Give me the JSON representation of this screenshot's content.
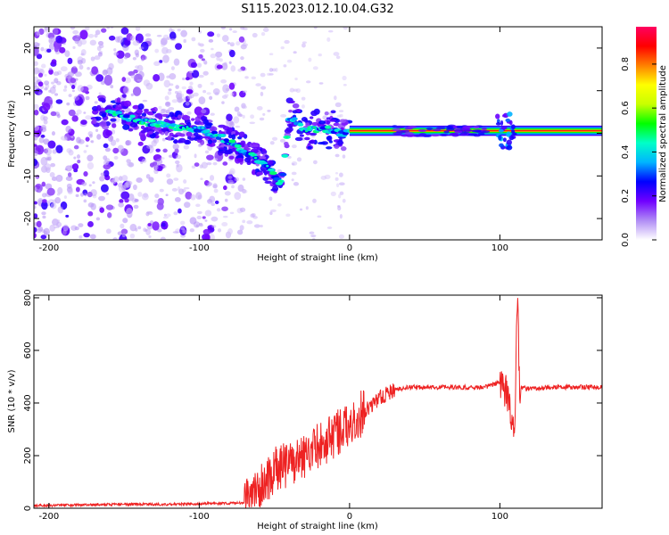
{
  "figure": {
    "title": "S115.2023.012.10.04.G32"
  },
  "chart_data": [
    {
      "type": "heatmap",
      "xlabel": "Height of straight line (km)",
      "ylabel": "Frequency (Hz)",
      "xlim": [
        -210,
        168
      ],
      "ylim": [
        -25,
        25
      ],
      "xticks": [
        -200,
        -100,
        0,
        100
      ],
      "yticks": [
        -20,
        -10,
        0,
        10,
        20
      ],
      "colorbar": {
        "label": "Normalized spectral amplitude",
        "range": [
          0,
          0.97
        ],
        "ticks": [
          0.0,
          0.2,
          0.4,
          0.6,
          0.8
        ],
        "tick_labels": [
          "0.0",
          "0.2",
          "0.4",
          "0.6",
          "0.8"
        ],
        "colormap": [
          "#ffffff",
          "#b08cf5",
          "#7000ff",
          "#0000ff",
          "#00b4ff",
          "#00ffc8",
          "#00ff00",
          "#c8ff00",
          "#ffff00",
          "#ff8000",
          "#ff0000",
          "#ff0060"
        ]
      },
      "ridge_points": [
        {
          "x": -160,
          "y": 5
        },
        {
          "x": -140,
          "y": 3
        },
        {
          "x": -120,
          "y": 1.5
        },
        {
          "x": -100,
          "y": 1
        },
        {
          "x": -85,
          "y": -1
        },
        {
          "x": -70,
          "y": -4
        },
        {
          "x": -55,
          "y": -8
        },
        {
          "x": -45,
          "y": -12
        },
        {
          "x": -40,
          "y": 4
        },
        {
          "x": -30,
          "y": 1
        },
        {
          "x": -15,
          "y": 1
        },
        {
          "x": -5,
          "y": 0
        },
        {
          "x": 0,
          "y": 0.5
        },
        {
          "x": 50,
          "y": 0.6
        },
        {
          "x": 100,
          "y": 0.6
        },
        {
          "x": 160,
          "y": 0.6
        }
      ]
    },
    {
      "type": "line",
      "xlabel": "Height of straight line (km)",
      "ylabel": "SNR (10 * v/v)",
      "xlim": [
        -210,
        168
      ],
      "ylim": [
        0,
        810
      ],
      "xticks": [
        -200,
        -100,
        0,
        100
      ],
      "yticks": [
        0,
        200,
        400,
        600,
        800
      ],
      "color": "#ee2222",
      "series": [
        {
          "x": [
            -210,
            -180,
            -150,
            -120,
            -90,
            -70,
            -60,
            -50,
            -40,
            -30,
            -20,
            -10,
            0,
            10,
            20,
            30,
            40,
            60,
            80,
            90,
            95,
            100,
            104,
            108,
            110,
            111,
            112,
            113,
            115,
            120,
            140,
            168
          ],
          "values": [
            10,
            12,
            15,
            15,
            18,
            20,
            70,
            150,
            170,
            200,
            240,
            280,
            320,
            370,
            420,
            450,
            460,
            460,
            460,
            460,
            470,
            480,
            450,
            350,
            250,
            700,
            810,
            470,
            455,
            455,
            460,
            460
          ]
        }
      ]
    }
  ]
}
